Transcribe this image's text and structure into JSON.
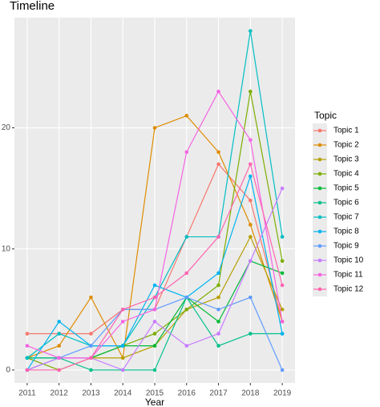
{
  "chart_data": {
    "type": "line",
    "title": "Timeline",
    "x_label": "Year",
    "legend_title": "Topic",
    "x": [
      2011,
      2012,
      2013,
      2014,
      2015,
      2016,
      2017,
      2018,
      2019
    ],
    "xlim": [
      2010.6,
      2019.4
    ],
    "xticks": [
      2011,
      2012,
      2013,
      2014,
      2015,
      2016,
      2017,
      2018,
      2019
    ],
    "ylim": [
      -1.07,
      29.1
    ],
    "yticks": [
      0,
      {
        "value": 10,
        "label": "10"
      },
      {
        "value": 20,
        "label": "20"
      }
    ],
    "grid": true,
    "legend": "right",
    "series": [
      {
        "name": "Topic 1",
        "color": "#F8766D",
        "values": [
          3,
          3,
          3,
          5,
          5,
          11,
          17,
          14,
          4
        ]
      },
      {
        "name": "Topic 2",
        "color": "#DE8C00",
        "values": [
          1,
          2,
          6,
          1,
          20,
          21,
          18,
          12,
          4
        ]
      },
      {
        "name": "Topic 3",
        "color": "#B79F00",
        "values": [
          0,
          1,
          1,
          1,
          2,
          5,
          6,
          11,
          5
        ]
      },
      {
        "name": "Topic 4",
        "color": "#7CAE00",
        "values": [
          1,
          0,
          1,
          2,
          3,
          5,
          7,
          23,
          9
        ]
      },
      {
        "name": "Topic 5",
        "color": "#00BA38",
        "values": [
          1,
          1,
          1,
          2,
          2,
          6,
          4,
          9,
          8
        ]
      },
      {
        "name": "Topic 6",
        "color": "#00C08B",
        "values": [
          1,
          1,
          0,
          0,
          0,
          6,
          2,
          3,
          3
        ]
      },
      {
        "name": "Topic 7",
        "color": "#00BFC4",
        "values": [
          1,
          3,
          2,
          2,
          6,
          11,
          11,
          28,
          11
        ]
      },
      {
        "name": "Topic 8",
        "color": "#00B4F0",
        "values": [
          0,
          4,
          2,
          2,
          7,
          6,
          8,
          16,
          3
        ]
      },
      {
        "name": "Topic 9",
        "color": "#619CFF",
        "values": [
          0,
          1,
          2,
          5,
          5,
          6,
          5,
          6,
          0
        ]
      },
      {
        "name": "Topic 10",
        "color": "#C77CFF",
        "values": [
          0,
          1,
          1,
          0,
          4,
          2,
          3,
          9,
          15
        ]
      },
      {
        "name": "Topic 11",
        "color": "#F564E3",
        "values": [
          2,
          1,
          1,
          4,
          5,
          18,
          23,
          19,
          4
        ]
      },
      {
        "name": "Topic 12",
        "color": "#FF64B0",
        "values": [
          0,
          0,
          1,
          5,
          6,
          8,
          11,
          17,
          7
        ]
      }
    ]
  }
}
